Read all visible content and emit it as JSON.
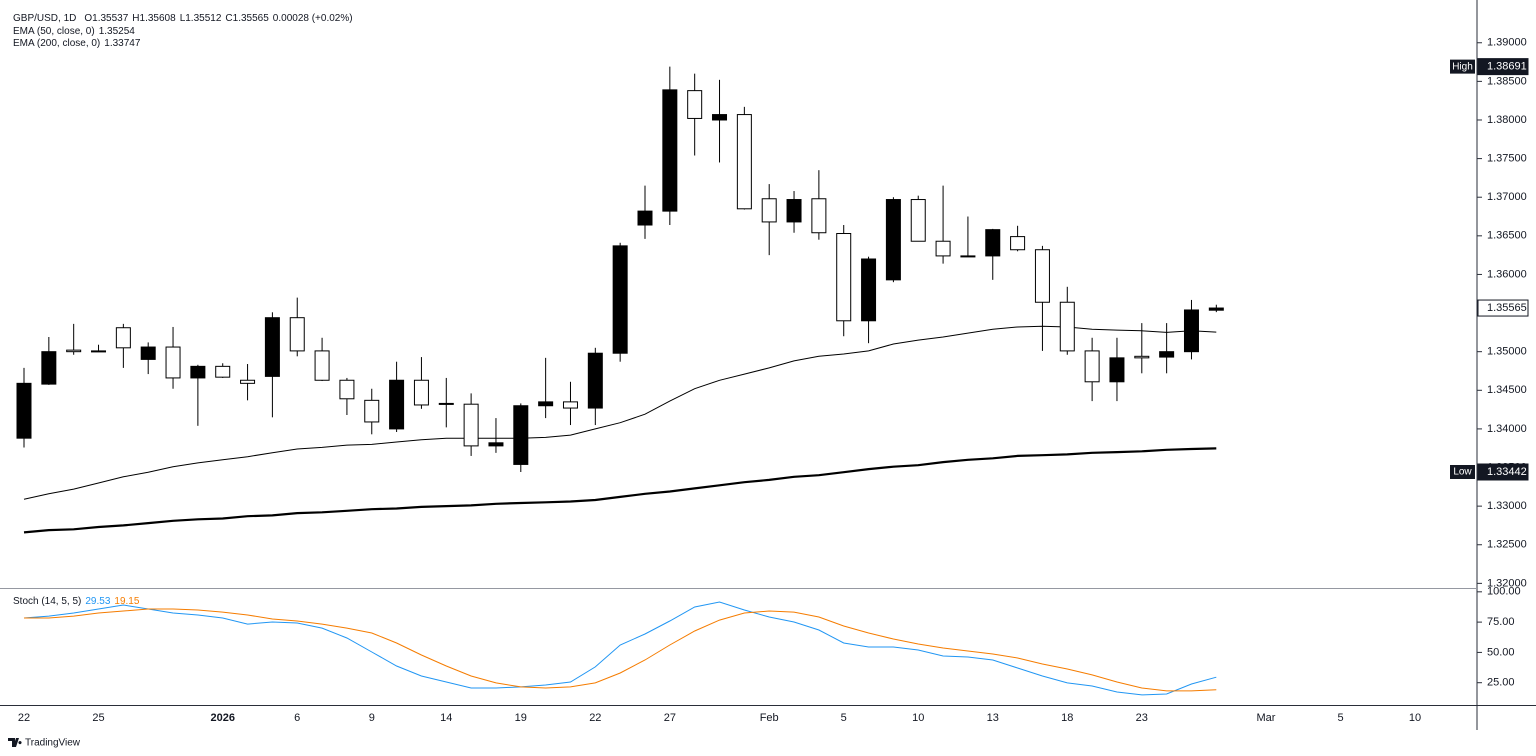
{
  "chart_data": [
    {
      "type": "candlestick",
      "title": "GBP/USD, 1D",
      "ohlc_labels": [
        "O",
        "H",
        "L",
        "C"
      ],
      "change": "0.00028 (+0.02%)",
      "categories": [
        "22",
        null,
        null,
        "25",
        null,
        null,
        null,
        null,
        "2026",
        null,
        null,
        "6",
        null,
        null,
        "9",
        null,
        null,
        "14",
        null,
        null,
        "19",
        null,
        null,
        "22",
        null,
        null,
        "27",
        null,
        null,
        null,
        "Feb",
        null,
        null,
        "5",
        null,
        null,
        "10",
        null,
        null,
        "13",
        null,
        null,
        "18",
        null,
        null,
        "23",
        null,
        null,
        null,
        null,
        "Mar",
        null,
        null,
        "5",
        null,
        null,
        "10"
      ],
      "open": [
        1.3388,
        1.3458,
        1.3502,
        1.3501,
        1.3531,
        1.349,
        1.3506,
        1.3466,
        1.3481,
        1.3463,
        1.3468,
        1.3544,
        1.3501,
        1.3463,
        1.3437,
        1.34,
        1.3463,
        1.3433,
        1.3432,
        1.3378,
        1.3354,
        1.343,
        1.3435,
        1.3427,
        1.3498,
        1.3664,
        1.3682,
        1.3838,
        1.38,
        1.3807,
        1.3698,
        1.3668,
        1.3698,
        1.3653,
        1.354,
        1.3593,
        1.3697,
        1.3643,
        1.3624,
        1.3624,
        1.3649,
        1.3632,
        1.3564,
        1.3501,
        1.3461,
        1.3494,
        1.3493,
        1.35,
        1.35537,
        null,
        null,
        null,
        null,
        null,
        null,
        null,
        null
      ],
      "high": [
        1.3479,
        1.3519,
        1.3536,
        1.3509,
        1.3536,
        1.3512,
        1.3532,
        1.3483,
        1.3485,
        1.3484,
        1.3551,
        1.357,
        1.3518,
        1.3466,
        1.3452,
        1.3487,
        1.3493,
        1.3466,
        1.3446,
        1.3414,
        1.3433,
        1.3492,
        1.3461,
        1.3505,
        1.3641,
        1.3715,
        1.38691,
        1.386,
        1.3852,
        1.3817,
        1.3717,
        1.3708,
        1.3735,
        1.3664,
        1.3623,
        1.37,
        1.3702,
        1.3715,
        1.3675,
        1.3659,
        1.3663,
        1.3637,
        1.3584,
        1.3518,
        1.3518,
        1.3537,
        1.3537,
        1.3567,
        1.35608,
        null,
        null,
        null,
        null,
        null,
        null,
        null,
        null
      ],
      "low": [
        1.3376,
        1.3457,
        1.3496,
        1.35,
        1.3479,
        1.3471,
        1.3452,
        1.3404,
        1.3466,
        1.3437,
        1.3415,
        1.3494,
        1.3462,
        1.3418,
        1.3393,
        1.3396,
        1.3426,
        1.3402,
        1.3365,
        1.3369,
        1.33442,
        1.3414,
        1.3405,
        1.3405,
        1.3487,
        1.3646,
        1.3664,
        1.3754,
        1.3745,
        1.3684,
        1.3625,
        1.3654,
        1.3645,
        1.352,
        1.3511,
        1.359,
        1.3643,
        1.3614,
        1.3623,
        1.3593,
        1.363,
        1.3501,
        1.3496,
        1.3436,
        1.3436,
        1.3472,
        1.3472,
        1.349,
        1.35512,
        null,
        null,
        null,
        null,
        null,
        null,
        null,
        null
      ],
      "close": [
        1.3459,
        1.35,
        1.35,
        1.35,
        1.3505,
        1.3506,
        1.3466,
        1.3481,
        1.3467,
        1.3459,
        1.3544,
        1.3501,
        1.3463,
        1.3439,
        1.3409,
        1.3463,
        1.3431,
        1.3432,
        1.3378,
        1.3382,
        1.343,
        1.3435,
        1.3427,
        1.3498,
        1.3637,
        1.3682,
        1.3839,
        1.3802,
        1.3807,
        1.3685,
        1.3668,
        1.3697,
        1.3654,
        1.354,
        1.362,
        1.3697,
        1.3643,
        1.3624,
        1.3623,
        1.3658,
        1.3632,
        1.3564,
        1.3501,
        1.3461,
        1.3492,
        1.3492,
        1.35,
        1.3554,
        1.35565,
        null,
        null,
        null,
        null,
        null,
        null,
        null,
        null
      ],
      "up_color": "#000000",
      "down_color": "#ffffff",
      "series": [
        {
          "name": "EMA (50, close, 0)",
          "color": "#000000",
          "values": [
            1.3309,
            1.3316,
            1.3322,
            1.333,
            1.3338,
            1.3344,
            1.3351,
            1.3356,
            1.336,
            1.3364,
            1.3369,
            1.3374,
            1.3376,
            1.3379,
            1.338,
            1.3383,
            1.3386,
            1.3388,
            1.3388,
            1.3388,
            1.3388,
            1.3389,
            1.3392,
            1.34,
            1.3408,
            1.3419,
            1.3436,
            1.3452,
            1.3463,
            1.3471,
            1.3479,
            1.3488,
            1.3494,
            1.3497,
            1.3501,
            1.351,
            1.3515,
            1.3519,
            1.3524,
            1.3529,
            1.3532,
            1.3533,
            1.3532,
            1.3529,
            1.3528,
            1.3527,
            1.3525,
            1.3527,
            1.35254,
            null,
            null,
            null,
            null,
            null,
            null,
            null,
            null
          ]
        },
        {
          "name": "EMA (200, close, 0)",
          "color": "#000000",
          "values": [
            1.3266,
            1.3269,
            1.327,
            1.3273,
            1.3275,
            1.3278,
            1.3281,
            1.3283,
            1.3284,
            1.3287,
            1.3288,
            1.3291,
            1.3292,
            1.3294,
            1.3296,
            1.3297,
            1.3299,
            1.33,
            1.3301,
            1.3303,
            1.3304,
            1.3305,
            1.3306,
            1.3308,
            1.3312,
            1.3316,
            1.3319,
            1.3323,
            1.3327,
            1.3331,
            1.3334,
            1.3338,
            1.334,
            1.3344,
            1.3348,
            1.3351,
            1.3353,
            1.3357,
            1.336,
            1.3362,
            1.3365,
            1.3366,
            1.3367,
            1.3369,
            1.337,
            1.3371,
            1.3373,
            1.3374,
            1.33747,
            null,
            null,
            null,
            null,
            null,
            null,
            null,
            null
          ]
        }
      ],
      "high_label": "High",
      "low_label": "Low",
      "ylim": [
        1.3194,
        1.3945
      ],
      "yticks": [
        {
          "value": 1.32,
          "label": "1.32000"
        },
        {
          "value": 1.325,
          "label": "1.32500"
        },
        {
          "value": 1.33,
          "label": "1.33000"
        },
        {
          "value": 1.335,
          "label": "1.33500"
        },
        {
          "value": 1.34,
          "label": "1.34000"
        },
        {
          "value": 1.345,
          "label": "1.34500"
        },
        {
          "value": 1.35,
          "label": "1.35000"
        },
        {
          "value": 1.355,
          "label": "1.35500"
        },
        {
          "value": 1.36,
          "label": "1.36000"
        },
        {
          "value": 1.365,
          "label": "1.36500"
        },
        {
          "value": 1.37,
          "label": "1.37000"
        },
        {
          "value": 1.375,
          "label": "1.37500"
        },
        {
          "value": 1.38,
          "label": "1.38000"
        },
        {
          "value": 1.385,
          "label": "1.38500"
        },
        {
          "value": 1.39,
          "label": "1.39000"
        }
      ],
      "grid": true
    },
    {
      "type": "line",
      "title": "Stoch (14, 5, 5)",
      "series": [
        {
          "color": "#2196f3",
          "values": [
            78.4,
            80.0,
            82.5,
            85.8,
            89.1,
            85.8,
            82.5,
            80.9,
            78.4,
            73.4,
            75.1,
            74.3,
            70.1,
            61.9,
            50.3,
            38.8,
            30.5,
            25.6,
            20.6,
            20.6,
            21.5,
            23.1,
            25.6,
            38.0,
            56.1,
            65.2,
            75.9,
            87.5,
            91.6,
            85.0,
            79.2,
            75.1,
            68.5,
            57.8,
            54.5,
            54.5,
            52.0,
            47.0,
            46.2,
            43.7,
            37.1,
            30.5,
            24.8,
            22.3,
            17.3,
            14.9,
            15.7,
            23.9,
            29.53,
            null,
            null,
            null,
            null,
            null,
            null,
            null,
            null
          ]
        },
        {
          "color": "#f57c00",
          "values": [
            78.4,
            78.4,
            80.0,
            82.5,
            84.2,
            85.8,
            85.8,
            85.0,
            83.3,
            80.9,
            77.6,
            75.9,
            73.4,
            70.1,
            66.0,
            57.8,
            47.9,
            38.8,
            30.5,
            24.8,
            21.5,
            20.6,
            21.5,
            24.8,
            33.0,
            43.7,
            56.1,
            67.7,
            76.7,
            82.5,
            84.2,
            83.3,
            79.2,
            71.8,
            66.0,
            61.1,
            56.9,
            53.6,
            51.2,
            48.7,
            45.4,
            40.4,
            36.3,
            31.4,
            25.6,
            20.6,
            18.2,
            18.2,
            19.15,
            null,
            null,
            null,
            null,
            null,
            null,
            null,
            null
          ]
        }
      ],
      "band": [
        20,
        80
      ],
      "band_color": "#e0e0e0",
      "ylim": [
        6.6,
        101.5
      ],
      "yticks": [
        {
          "value": 25,
          "label": "25.00"
        },
        {
          "value": 50,
          "label": "50.00"
        },
        {
          "value": 75,
          "label": "75.00"
        },
        {
          "value": 100,
          "label": "100.00"
        }
      ]
    }
  ],
  "footer": "TradingView"
}
